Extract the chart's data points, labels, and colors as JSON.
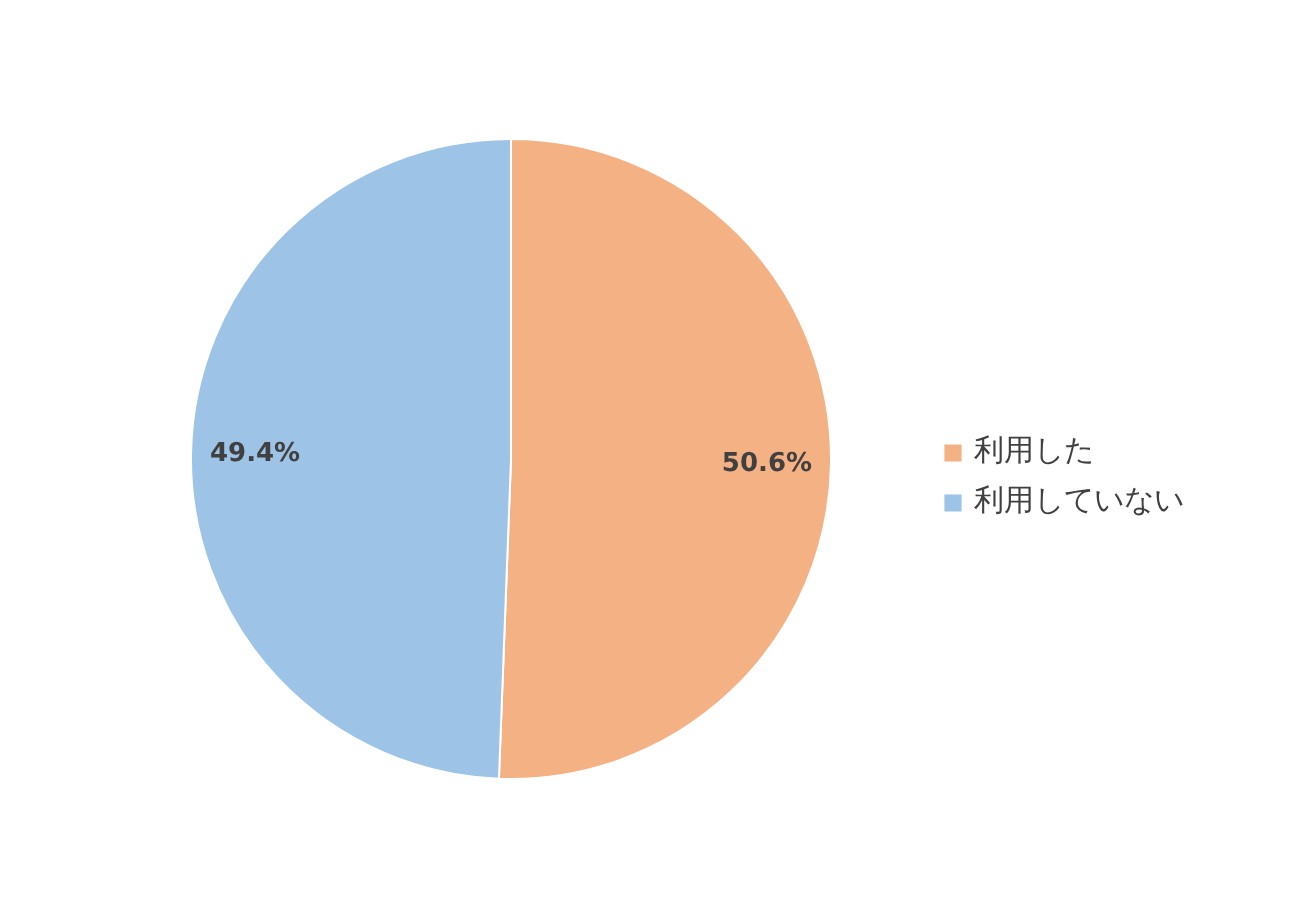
{
  "chart_data": {
    "type": "pie",
    "categories": [
      "利用した",
      "利用していない"
    ],
    "values": [
      50.6,
      49.4
    ],
    "colors": [
      "#f4b183",
      "#9dc3e6"
    ],
    "value_labels": [
      "50.6%",
      "49.4%"
    ],
    "legend": "right"
  }
}
